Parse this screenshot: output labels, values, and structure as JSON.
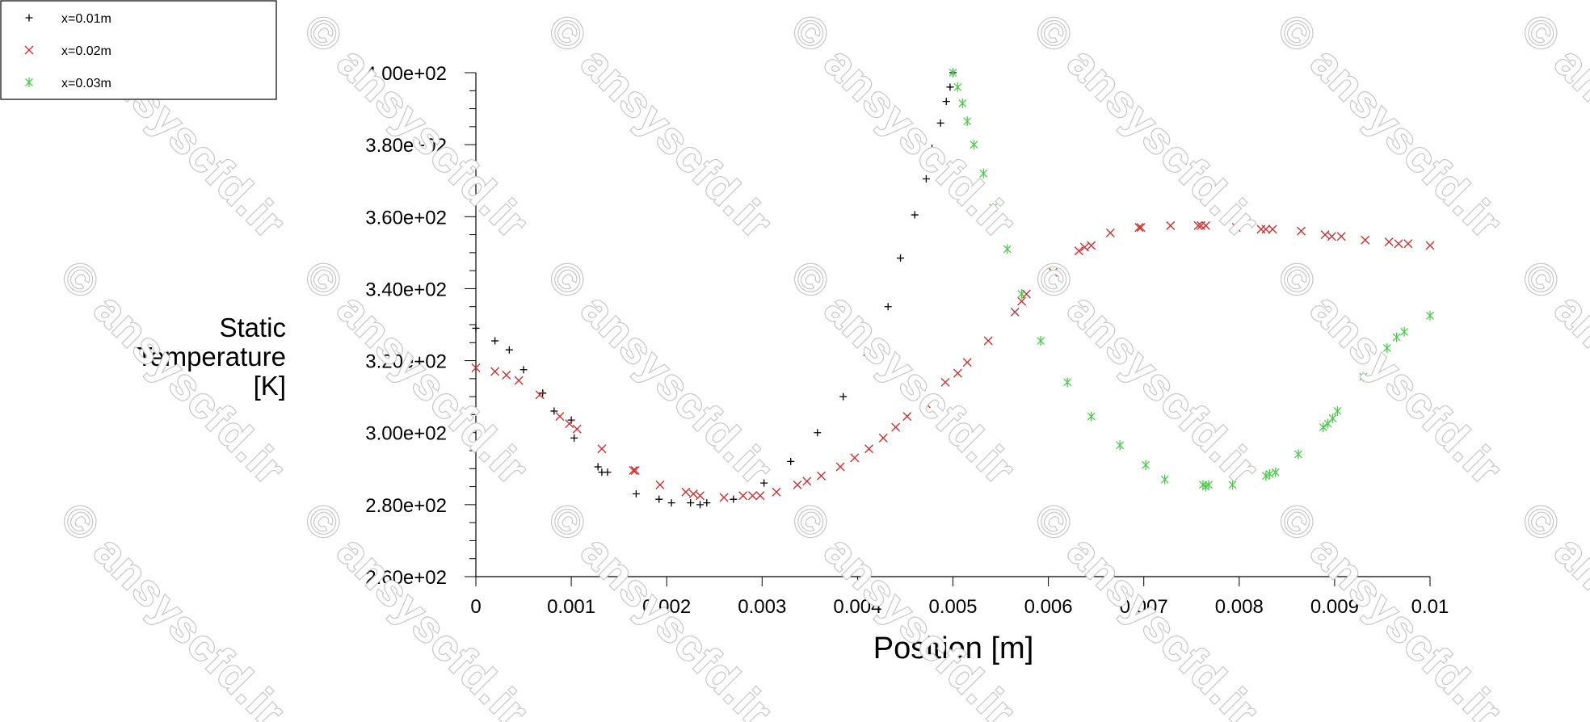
{
  "chart_data": {
    "type": "scatter",
    "xlabel": "Position [m]",
    "ylabel_lines": [
      "Static",
      "Temperature",
      "[K]"
    ],
    "xlim": [
      0,
      0.01
    ],
    "ylim": [
      260,
      400
    ],
    "x_ticks": [
      0,
      0.001,
      0.002,
      0.003,
      0.004,
      0.005,
      0.006,
      0.007,
      0.008,
      0.009,
      0.01
    ],
    "x_tick_labels": [
      "0",
      "0.001",
      "0.002",
      "0.003",
      "0.004",
      "0.005",
      "0.006",
      "0.007",
      "0.008",
      "0.009",
      "0.01"
    ],
    "y_ticks": [
      260,
      280,
      300,
      320,
      340,
      360,
      380,
      400
    ],
    "y_tick_labels": [
      "2.60e+02",
      "2.80e+02",
      "3.00e+02",
      "3.20e+02",
      "3.40e+02",
      "3.60e+02",
      "3.80e+02",
      "4.00e+02"
    ],
    "y_minor_step": 5,
    "grid": false,
    "legend_position": "top-left",
    "watermark": "© ansyscfd.ir",
    "series": [
      {
        "name": "x=0.01m",
        "marker": "plus",
        "color": "#000000",
        "points": [
          [
            0,
            329
          ],
          [
            0.0002,
            325.5
          ],
          [
            0.00035,
            323
          ],
          [
            0.0005,
            317.5
          ],
          [
            0.0007,
            311
          ],
          [
            0.00082,
            306
          ],
          [
            0.001,
            303.5
          ],
          [
            0.00103,
            298.5
          ],
          [
            0.00128,
            290.5
          ],
          [
            0.00132,
            289
          ],
          [
            0.00138,
            289
          ],
          [
            0.00168,
            283
          ],
          [
            0.00192,
            281.5
          ],
          [
            0.00205,
            280.5
          ],
          [
            0.00225,
            280.5
          ],
          [
            0.00235,
            280
          ],
          [
            0.00242,
            280.5
          ],
          [
            0.0027,
            281.5
          ],
          [
            0.00302,
            286
          ],
          [
            0.0033,
            292
          ],
          [
            0.00358,
            300
          ],
          [
            0.00385,
            310
          ],
          [
            0.0041,
            321.5
          ],
          [
            0.00432,
            335
          ],
          [
            0.00445,
            348.5
          ],
          [
            0.0046,
            360.5
          ],
          [
            0.00472,
            370.5
          ],
          [
            0.00478,
            379
          ],
          [
            0.00487,
            386
          ],
          [
            0.00493,
            392
          ],
          [
            0.00497,
            396
          ],
          [
            0.005,
            400
          ]
        ]
      },
      {
        "name": "x=0.02m",
        "marker": "x",
        "color": "#d03030",
        "points": [
          [
            0,
            318
          ],
          [
            0.0002,
            317
          ],
          [
            0.00032,
            316
          ],
          [
            0.00045,
            314.5
          ],
          [
            0.00067,
            310.5
          ],
          [
            0.00088,
            304.5
          ],
          [
            0.00098,
            302.5
          ],
          [
            0.00106,
            301
          ],
          [
            0.00132,
            295.5
          ],
          [
            0.00165,
            289.5
          ],
          [
            0.00167,
            289.5
          ],
          [
            0.00193,
            285.5
          ],
          [
            0.0022,
            283.5
          ],
          [
            0.00228,
            283
          ],
          [
            0.00235,
            282.5
          ],
          [
            0.0026,
            282
          ],
          [
            0.0028,
            282.5
          ],
          [
            0.0029,
            282.5
          ],
          [
            0.00298,
            282.5
          ],
          [
            0.00315,
            283.5
          ],
          [
            0.00337,
            285.5
          ],
          [
            0.00347,
            286.5
          ],
          [
            0.00362,
            288
          ],
          [
            0.00382,
            290.5
          ],
          [
            0.00397,
            293
          ],
          [
            0.00412,
            295.5
          ],
          [
            0.00427,
            298.5
          ],
          [
            0.0044,
            301.5
          ],
          [
            0.00452,
            304.5
          ],
          [
            0.00472,
            308
          ],
          [
            0.00492,
            314
          ],
          [
            0.00505,
            316.5
          ],
          [
            0.00515,
            319.5
          ],
          [
            0.00537,
            325.5
          ],
          [
            0.00565,
            333.5
          ],
          [
            0.00572,
            336.5
          ],
          [
            0.00577,
            338.5
          ],
          [
            0.00605,
            344.5
          ],
          [
            0.00632,
            350.5
          ],
          [
            0.00638,
            351.5
          ],
          [
            0.00645,
            352
          ],
          [
            0.00665,
            355.5
          ],
          [
            0.00695,
            357
          ],
          [
            0.00697,
            357
          ],
          [
            0.00728,
            357.5
          ],
          [
            0.00757,
            357.5
          ],
          [
            0.0076,
            357.5
          ],
          [
            0.00765,
            357.5
          ],
          [
            0.00797,
            357
          ],
          [
            0.00823,
            356.5
          ],
          [
            0.00828,
            356.5
          ],
          [
            0.00835,
            356.5
          ],
          [
            0.00865,
            356
          ],
          [
            0.0089,
            355
          ],
          [
            0.00897,
            354.5
          ],
          [
            0.00907,
            354.5
          ],
          [
            0.00932,
            353.5
          ],
          [
            0.00957,
            353
          ],
          [
            0.00967,
            352.5
          ],
          [
            0.00977,
            352.5
          ],
          [
            0.01,
            352
          ]
        ]
      },
      {
        "name": "x=0.03m",
        "marker": "star",
        "color": "#4ccc4c",
        "points": [
          [
            0.005,
            400
          ],
          [
            0.00505,
            396
          ],
          [
            0.0051,
            391.5
          ],
          [
            0.00515,
            386.5
          ],
          [
            0.00522,
            380
          ],
          [
            0.00532,
            372
          ],
          [
            0.00542,
            362.5
          ],
          [
            0.00557,
            351
          ],
          [
            0.00572,
            338.5
          ],
          [
            0.00592,
            325.5
          ],
          [
            0.0062,
            314
          ],
          [
            0.00645,
            304.5
          ],
          [
            0.00675,
            296.5
          ],
          [
            0.00702,
            291
          ],
          [
            0.00722,
            287
          ],
          [
            0.00762,
            285.5
          ],
          [
            0.00765,
            285
          ],
          [
            0.00768,
            285.5
          ],
          [
            0.00793,
            285.5
          ],
          [
            0.00828,
            288
          ],
          [
            0.00832,
            288.5
          ],
          [
            0.00838,
            289
          ],
          [
            0.00862,
            294
          ],
          [
            0.00888,
            301.5
          ],
          [
            0.00893,
            302.5
          ],
          [
            0.00898,
            304
          ],
          [
            0.00903,
            306
          ],
          [
            0.0093,
            315.5
          ],
          [
            0.00955,
            323.5
          ],
          [
            0.00965,
            326.5
          ],
          [
            0.00973,
            328
          ],
          [
            0.01,
            332.5
          ]
        ]
      }
    ]
  }
}
